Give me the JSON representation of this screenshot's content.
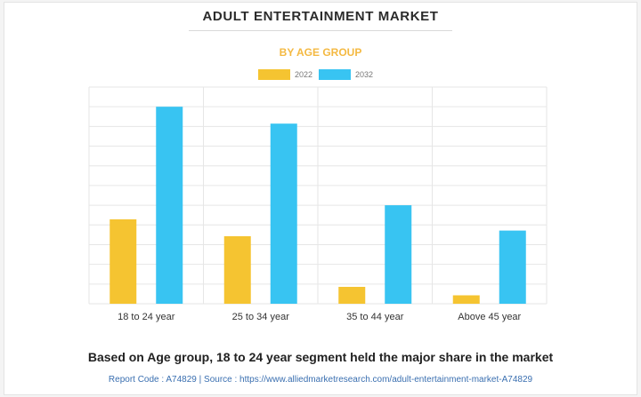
{
  "title": "ADULT ENTERTAINMENT MARKET",
  "subtitle": "BY AGE GROUP",
  "caption": "Based on Age group, 18 to 24 year segment held the major share in the market",
  "source_line": "Report Code : A74829  |  Source : https://www.alliedmarketresearch.com/adult-entertainment-market-A74829",
  "colors": {
    "series_2022": "#f5c431",
    "series_2032": "#38c4f2",
    "grid": "#e6e6e6",
    "axis_text": "#333333"
  },
  "chart_data": {
    "type": "bar",
    "categories": [
      "18 to 24 year",
      "25 to 34 year",
      "35 to 44 year",
      "Above 45 year"
    ],
    "series": [
      {
        "name": "2022",
        "values": [
          30,
          24,
          6,
          3
        ]
      },
      {
        "name": "2032",
        "values": [
          70,
          64,
          35,
          26
        ]
      }
    ],
    "ylim": [
      0,
      77
    ],
    "grid": true,
    "legend": "top-center",
    "y_axis_labels": false
  }
}
